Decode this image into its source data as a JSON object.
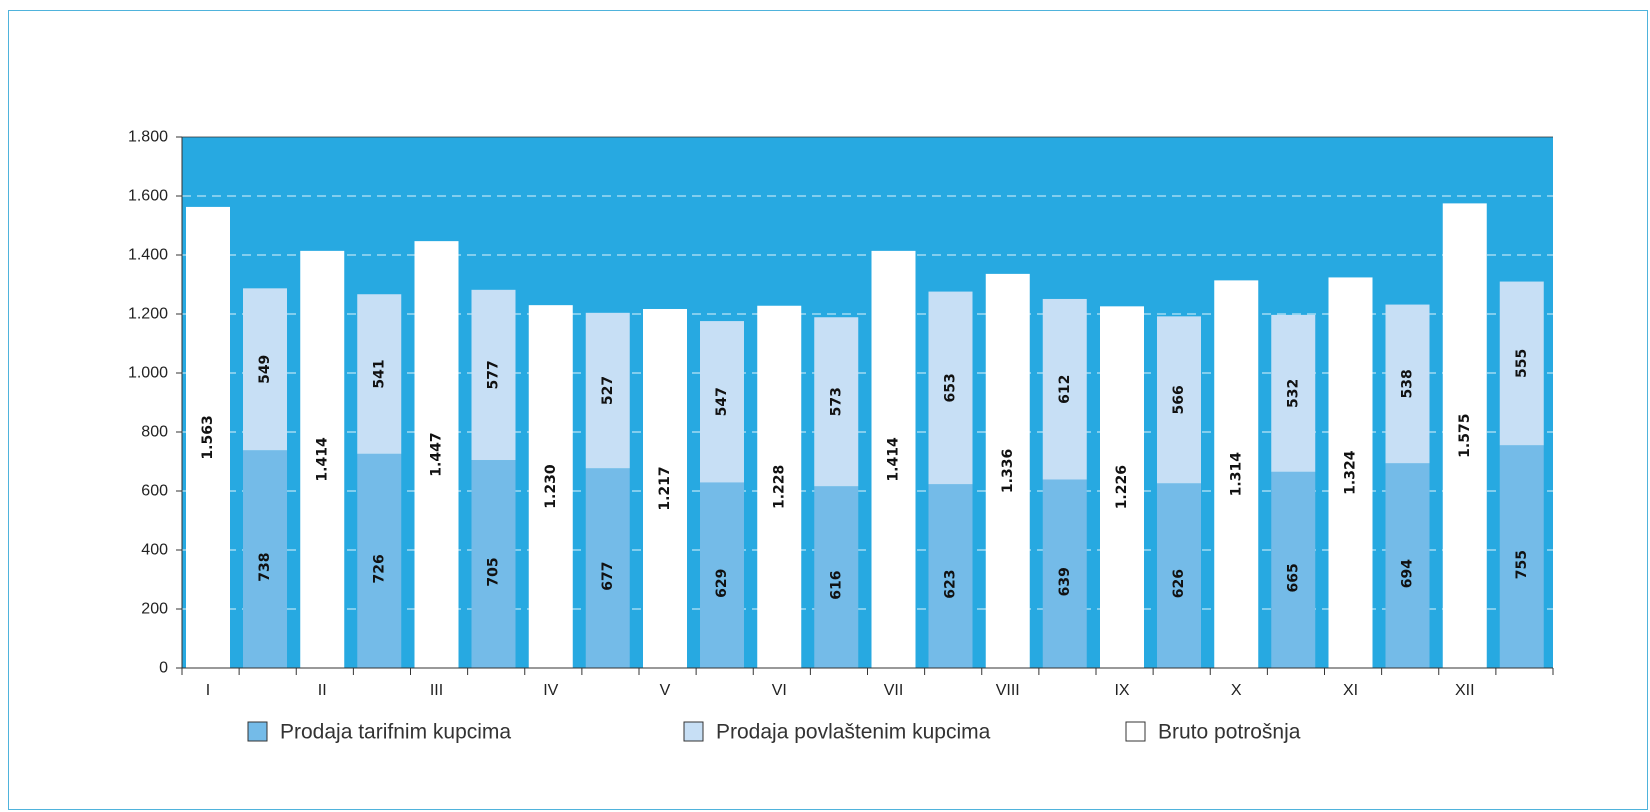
{
  "chart_data": {
    "type": "bar",
    "categories": [
      "I",
      "II",
      "III",
      "IV",
      "V",
      "VI",
      "VII",
      "VIII",
      "IX",
      "X",
      "XI",
      "XII"
    ],
    "series": [
      {
        "name": "Bruto potrošnja",
        "values": [
          1563,
          1414,
          1447,
          1230,
          1217,
          1228,
          1414,
          1336,
          1226,
          1314,
          1324,
          1575
        ],
        "labels": [
          "1.563",
          "1.414",
          "1.447",
          "1.230",
          "1.217",
          "1.228",
          "1.414",
          "1.336",
          "1.226",
          "1.314",
          "1.324",
          "1.575"
        ]
      },
      {
        "name": "Prodaja tarifnim kupcima",
        "values": [
          738,
          726,
          705,
          677,
          629,
          616,
          623,
          639,
          626,
          665,
          694,
          755
        ],
        "labels": [
          "738",
          "726",
          "705",
          "677",
          "629",
          "616",
          "623",
          "639",
          "626",
          "665",
          "694",
          "755"
        ]
      },
      {
        "name": "Prodaja povlaštenim kupcima",
        "values": [
          549,
          541,
          577,
          527,
          547,
          573,
          653,
          612,
          566,
          532,
          538,
          555
        ],
        "labels": [
          "549",
          "541",
          "577",
          "527",
          "547",
          "573",
          "653",
          "612",
          "566",
          "532",
          "538",
          "555"
        ]
      }
    ],
    "stacked_series": [
      "Prodaja tarifnim kupcima",
      "Prodaja povlaštenim kupcima"
    ],
    "ylim": [
      0,
      1800
    ],
    "yticks": [
      0,
      200,
      400,
      600,
      800,
      1000,
      1200,
      1400,
      1600,
      1800
    ],
    "ytick_labels": [
      "0",
      "200",
      "400",
      "600",
      "800",
      "1.000",
      "1.200",
      "1.400",
      "1.600",
      "1.800"
    ],
    "grid": "dashed horizontal",
    "legend_position": "bottom",
    "legend": [
      "Prodaja tarifnim kupcima",
      "Prodaja povlaštenim kupcima",
      "Bruto potrošnja"
    ],
    "colors": {
      "plot_background": "#27a9e1",
      "Bruto potrošnja": "#ffffff",
      "Prodaja tarifnim kupcima": "#74bbe8",
      "Prodaja povlaštenim kupcima": "#c7dff5"
    }
  }
}
